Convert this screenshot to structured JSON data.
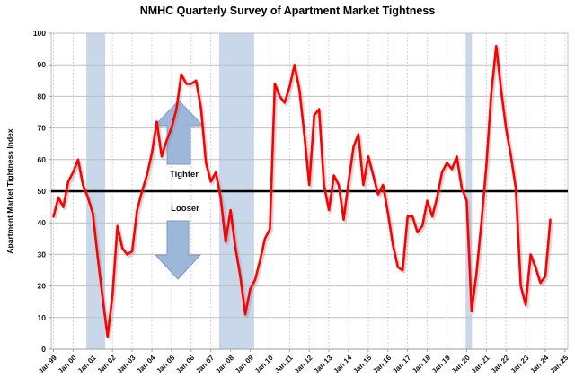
{
  "title": "NMHC Quarterly Survey of Apartment Market Tightness",
  "annotations": {
    "tighter": "Tighter",
    "looser": "Looser"
  },
  "chart_data": {
    "type": "line",
    "title": "NMHC Quarterly Survey of Apartment Market Tightness",
    "xlabel": "",
    "ylabel": "Apartment Market Tightness Index",
    "ylim": [
      0,
      100
    ],
    "ytick_step": 10,
    "y_tick_labels": [
      "0",
      "10",
      "20",
      "30",
      "40",
      "50",
      "60",
      "70",
      "80",
      "90",
      "100"
    ],
    "x_start": "1999 Q1",
    "x_end": "2024 Q2",
    "frequency": "quarterly",
    "x_tick_labels": [
      "Jan 99",
      "Jan 00",
      "Jan 01",
      "Jan 02",
      "Jan 03",
      "Jan 04",
      "Jan 05",
      "Jan 06",
      "Jan 07",
      "Jan 08",
      "Jan 09",
      "Jan 10",
      "Jan 11",
      "Jan 12",
      "Jan 13",
      "Jan 14",
      "Jan 15",
      "Jan 16",
      "Jan 17",
      "Jan 18",
      "Jan 19",
      "Jan 20",
      "Jan 21",
      "Jan 22",
      "Jan 23",
      "Jan 24",
      "Jan 25"
    ],
    "series": [
      {
        "name": "Apartment Market Tightness Index",
        "color": "#FF0000",
        "values": [
          42,
          48,
          45,
          53,
          56,
          60,
          52,
          48,
          43,
          29,
          16,
          4,
          17,
          39,
          32,
          30,
          31,
          44,
          50,
          55,
          62,
          72,
          61,
          66,
          70,
          76,
          87,
          84,
          84,
          85,
          76,
          59,
          53,
          56,
          48,
          34,
          44,
          32,
          23,
          11,
          19,
          22,
          28,
          35,
          38,
          84,
          80,
          78,
          83,
          90,
          82,
          68,
          52,
          74,
          76,
          52,
          44,
          55,
          52,
          41,
          53,
          64,
          68,
          52,
          61,
          55,
          49,
          52,
          43,
          33,
          26,
          25,
          42,
          42,
          37,
          39,
          47,
          42,
          48,
          56,
          59,
          57,
          61,
          51,
          47,
          12,
          24,
          40,
          58,
          81,
          96,
          82,
          70,
          61,
          51,
          20,
          14,
          30,
          26,
          21,
          23,
          41
        ]
      }
    ],
    "reference_line": {
      "value": 50,
      "color": "#000000"
    },
    "recession_bands_years": [
      [
        2000.67,
        2001.63
      ],
      [
        2007.42,
        2009.2
      ],
      [
        2019.95,
        2020.27
      ]
    ],
    "band_color": "#c9d7ea",
    "arrow_color": "#9db7da",
    "arrow_border": "#7e9cc4",
    "grid": true,
    "legend": "none"
  }
}
